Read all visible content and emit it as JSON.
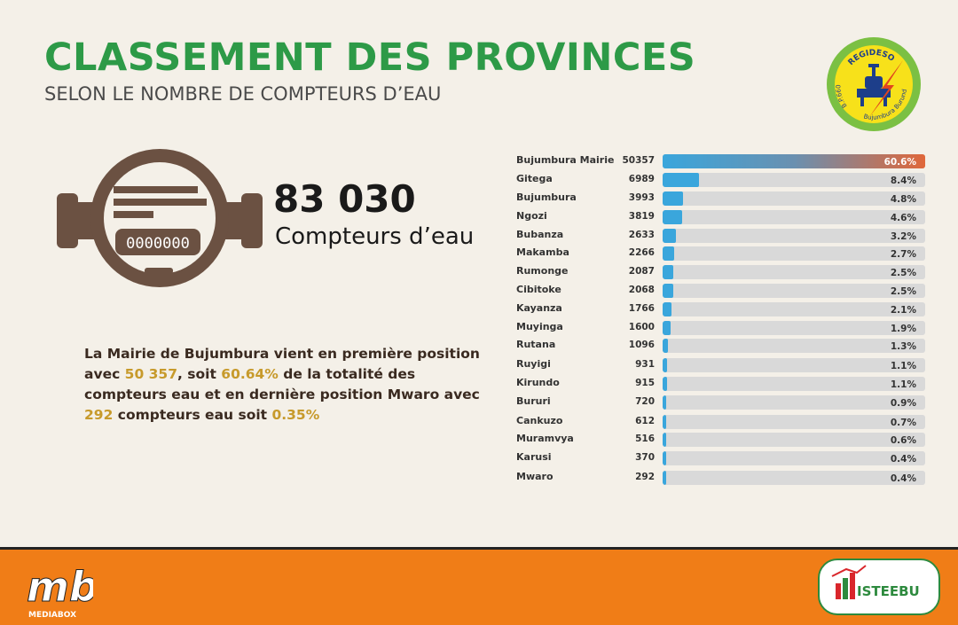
{
  "header": {
    "title": "CLASSEMENT DES PROVINCES",
    "subtitle": "SELON LE NOMBRE DE COMPTEURS D’EAU"
  },
  "logos": {
    "regideso": {
      "top": "REGIDESO",
      "left": "B.P.660",
      "right": "Bujumbura Burundi"
    },
    "mediabox": {
      "main": "mb",
      "sub": "MEDIABOX"
    },
    "isteebu": {
      "text": "ISTEEBU"
    }
  },
  "meter": {
    "display": "0000000"
  },
  "total": {
    "number": "83 030",
    "label": "Compteurs d’eau"
  },
  "summary": {
    "p1": "La Mairie de  Bujumbura vient en première position avec ",
    "v1": "50 357",
    "p2": ", soit ",
    "v2": "60.64%",
    "p3": " de la totalité des compteurs eau et en dernière position Mwaro avec ",
    "v3": "292",
    "p4": " compteurs eau soit ",
    "v4": "0.35%"
  },
  "colors": {
    "title_green": "#2d9a47",
    "bar_blue": "#3aa6dc",
    "bar_top_end": "#e0673a",
    "track_grey": "#d9d9d9",
    "footer_orange": "#f07d17",
    "highlight_gold": "#c79a2b",
    "meter_brown": "#6b5142"
  },
  "chart_data": {
    "type": "bar",
    "orientation": "horizontal",
    "categories": [
      "Bujumbura Mairie",
      "Gitega",
      "Bujumbura",
      "Ngozi",
      "Bubanza",
      "Makamba",
      "Rumonge",
      "Cibitoke",
      "Kayanza",
      "Muyinga",
      "Rutana",
      "Ruyigi",
      "Kirundo",
      "Bururi",
      "Cankuzo",
      "Muramvya",
      "Karusi",
      "Mwaro"
    ],
    "values": [
      50357,
      6989,
      3993,
      3819,
      2633,
      2266,
      2087,
      2068,
      1766,
      1600,
      1096,
      931,
      915,
      720,
      612,
      516,
      370,
      292
    ],
    "percent_labels": [
      "60.6%",
      "8.4%",
      "4.8%",
      "4.6%",
      "3.2%",
      "2.7%",
      "2.5%",
      "2.5%",
      "2.1%",
      "1.9%",
      "1.3%",
      "1.1%",
      "1.1%",
      "0.9%",
      "0.7%",
      "0.6%",
      "0.4%",
      "0.4%"
    ],
    "xlim": [
      0,
      50357
    ],
    "grid": false,
    "legend": "none"
  }
}
